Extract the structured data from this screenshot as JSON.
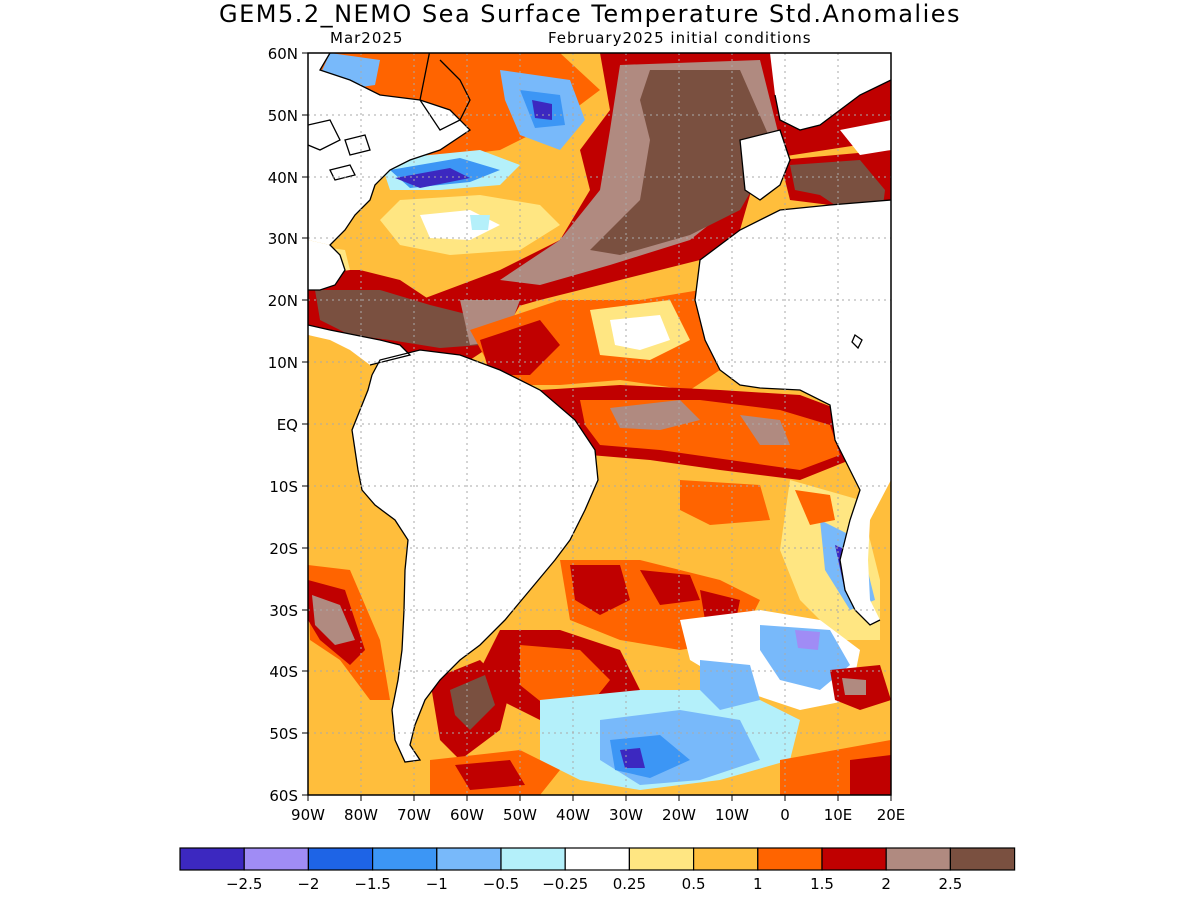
{
  "header": {
    "title": "GEM5.2_NEMO Sea Surface Temperature Std.Anomalies",
    "valid_month": "Mar2025",
    "init": "February2025 initial conditions"
  },
  "axes": {
    "lat_labels": [
      "60N",
      "50N",
      "40N",
      "30N",
      "20N",
      "10N",
      "EQ",
      "10S",
      "20S",
      "30S",
      "40S",
      "50S",
      "60S"
    ],
    "lon_labels": [
      "90W",
      "80W",
      "70W",
      "60W",
      "50W",
      "40W",
      "30W",
      "20W",
      "10W",
      "0",
      "10E",
      "20E"
    ]
  },
  "legend": {
    "colors": [
      "#3c28c0",
      "#a08cf5",
      "#1e64e6",
      "#3c96f5",
      "#78b9fa",
      "#b4f0fa",
      "#ffffff",
      "#ffe682",
      "#ffbe3c",
      "#ff6400",
      "#c00000",
      "#b08a80",
      "#7a5040"
    ],
    "labels": [
      "−2.5",
      "−2",
      "−1.5",
      "−1",
      "−0.5",
      "−0.25",
      "0.25",
      "0.5",
      "1",
      "1.5",
      "2",
      "2.5"
    ]
  }
}
